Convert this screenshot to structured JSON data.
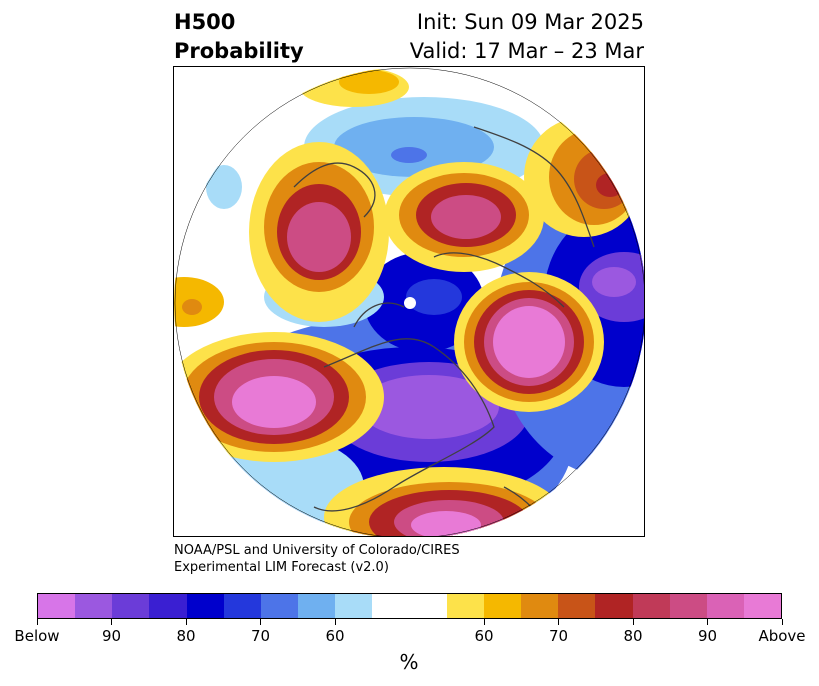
{
  "header": {
    "product_line1": "H500",
    "product_line2": "Probability",
    "init_text": "Init: Sun 09 Mar 2025",
    "valid_text": "Valid: 17 Mar – 23 Mar"
  },
  "credit": {
    "line1": "NOAA/PSL and University of Colorado/CIRES",
    "line2": "Experimental LIM Forecast (v2.0)"
  },
  "colorbar": {
    "colors": [
      "#d775e8",
      "#9b58e0",
      "#6b3cd8",
      "#3a1fd2",
      "#0000cc",
      "#2438dc",
      "#4d74e8",
      "#6fb0f0",
      "#a8dcf8",
      "#ffffff",
      "#ffffff",
      "#fde24a",
      "#f5b800",
      "#e08a10",
      "#c85418",
      "#b02424",
      "#c03a58",
      "#cc4c84",
      "#da62b6",
      "#e87ad6"
    ],
    "labels": [
      "Below",
      "90",
      "80",
      "70",
      "60",
      "60",
      "70",
      "80",
      "90",
      "Above"
    ],
    "unit": "%"
  },
  "map": {
    "projection": "north-polar-stereographic",
    "description_colors": {
      "above": "#e87ad6",
      "below": "#9b58e0"
    }
  }
}
